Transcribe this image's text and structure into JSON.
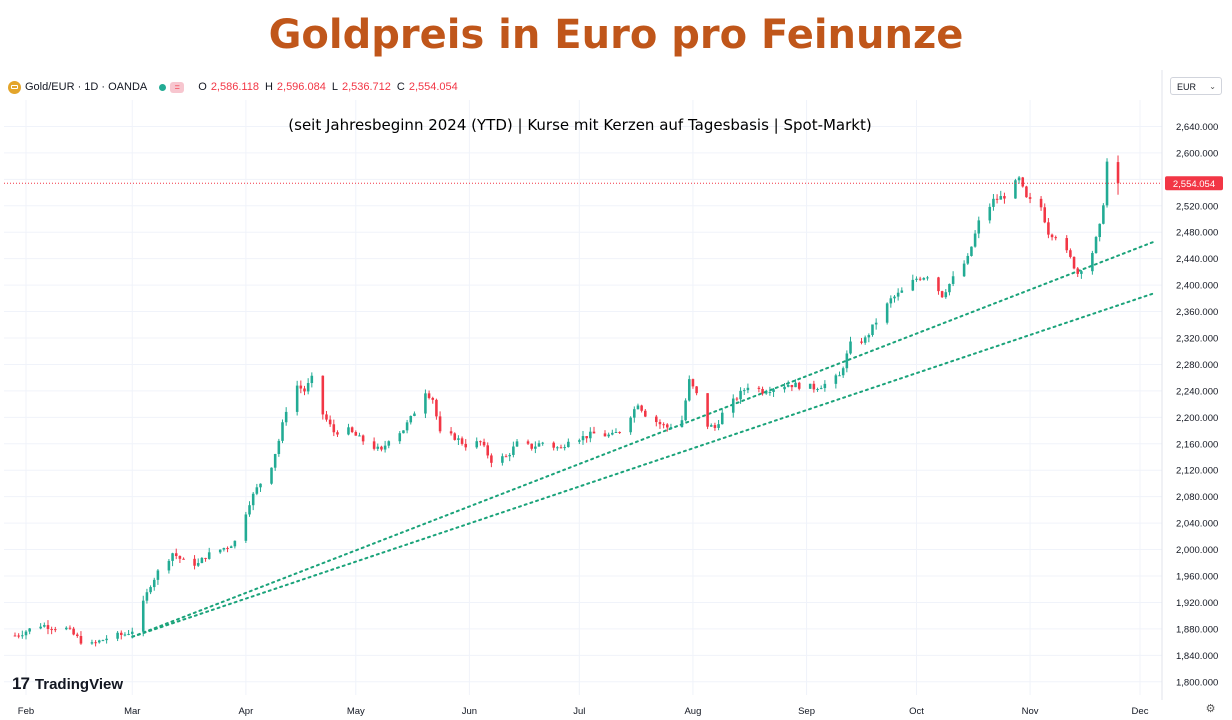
{
  "title": "Goldpreis in Euro pro Feinunze",
  "subtitle": "(seit Jahresbeginn 2024 (YTD) | Kurse mit Kerzen auf Tagesbasis | Spot-Markt)",
  "header": {
    "symbol": "Gold/EUR · 1D · OANDA",
    "badge": "=",
    "ohlc": [
      {
        "label": "O",
        "value": "2,586.118"
      },
      {
        "label": "H",
        "value": "2,596.084"
      },
      {
        "label": "L",
        "value": "2,536.712"
      },
      {
        "label": "C",
        "value": "2,554.054"
      }
    ]
  },
  "currency": "EUR",
  "logo_text": "TradingView",
  "colors": {
    "up": "#22ab94",
    "down": "#f23645",
    "title": "#c0561a",
    "trend": "#1aa37a"
  },
  "chart_data": {
    "type": "candlestick",
    "title": "Goldpreis in Euro pro Feinunze",
    "subtitle": "(seit Jahresbeginn 2024 (YTD) | Kurse mit Kerzen auf Tagesbasis | Spot-Markt)",
    "ylim": [
      1780,
      2680
    ],
    "y_ticks": [
      "1,800.000",
      "1,840.000",
      "1,880.000",
      "1,920.000",
      "1,960.000",
      "2,000.000",
      "2,040.000",
      "2,080.000",
      "2,120.000",
      "2,160.000",
      "2,200.000",
      "2,240.000",
      "2,280.000",
      "2,320.000",
      "2,360.000",
      "2,400.000",
      "2,440.000",
      "2,480.000",
      "2,520.000",
      "2,560.000",
      "2,600.000",
      "2,640.000"
    ],
    "x_ticks": [
      {
        "label": "Feb",
        "date": "2024-02-01"
      },
      {
        "label": "Mar",
        "date": "2024-03-01"
      },
      {
        "label": "Apr",
        "date": "2024-04-01"
      },
      {
        "label": "May",
        "date": "2024-05-01"
      },
      {
        "label": "Jun",
        "date": "2024-06-01"
      },
      {
        "label": "Jul",
        "date": "2024-07-01"
      },
      {
        "label": "Aug",
        "date": "2024-08-01"
      },
      {
        "label": "Sep",
        "date": "2024-09-01"
      },
      {
        "label": "Oct",
        "date": "2024-10-01"
      },
      {
        "label": "Nov",
        "date": "2024-11-01"
      },
      {
        "label": "Dec",
        "date": "2024-12-01"
      }
    ],
    "x_range": [
      "2024-01-26",
      "2024-12-07"
    ],
    "last_price": {
      "value": 2554.054,
      "label": "2,554.054"
    },
    "grid": true,
    "trendlines": [
      {
        "from": {
          "date": "2024-03-01",
          "price": 1868
        },
        "to": {
          "date": "2024-12-05",
          "price": 2466
        }
      },
      {
        "from": {
          "date": "2024-03-01",
          "price": 1868
        },
        "to": {
          "date": "2024-12-05",
          "price": 2388
        }
      }
    ],
    "closes": [
      {
        "date": "2024-01-29",
        "close": 1870
      },
      {
        "date": "2024-02-05",
        "close": 1886
      },
      {
        "date": "2024-02-12",
        "close": 1880
      },
      {
        "date": "2024-02-16",
        "close": 1862
      },
      {
        "date": "2024-02-19",
        "close": 1856
      },
      {
        "date": "2024-02-23",
        "close": 1866
      },
      {
        "date": "2024-02-28",
        "close": 1872
      },
      {
        "date": "2024-03-01",
        "close": 1878
      },
      {
        "date": "2024-03-04",
        "close": 1918
      },
      {
        "date": "2024-03-06",
        "close": 1948
      },
      {
        "date": "2024-03-08",
        "close": 1966
      },
      {
        "date": "2024-03-12",
        "close": 1995
      },
      {
        "date": "2024-03-15",
        "close": 1982
      },
      {
        "date": "2024-03-19",
        "close": 1978
      },
      {
        "date": "2024-03-21",
        "close": 1990
      },
      {
        "date": "2024-03-27",
        "close": 2005
      },
      {
        "date": "2024-03-29",
        "close": 2012
      },
      {
        "date": "2024-04-02",
        "close": 2072
      },
      {
        "date": "2024-04-04",
        "close": 2092
      },
      {
        "date": "2024-04-08",
        "close": 2128
      },
      {
        "date": "2024-04-10",
        "close": 2165
      },
      {
        "date": "2024-04-12",
        "close": 2212
      },
      {
        "date": "2024-04-15",
        "close": 2248
      },
      {
        "date": "2024-04-17",
        "close": 2240
      },
      {
        "date": "2024-04-19",
        "close": 2258
      },
      {
        "date": "2024-04-22",
        "close": 2205
      },
      {
        "date": "2024-04-25",
        "close": 2178
      },
      {
        "date": "2024-04-29",
        "close": 2180
      },
      {
        "date": "2024-05-02",
        "close": 2168
      },
      {
        "date": "2024-05-06",
        "close": 2155
      },
      {
        "date": "2024-05-08",
        "close": 2148
      },
      {
        "date": "2024-05-10",
        "close": 2168
      },
      {
        "date": "2024-05-14",
        "close": 2182
      },
      {
        "date": "2024-05-16",
        "close": 2198
      },
      {
        "date": "2024-05-20",
        "close": 2240
      },
      {
        "date": "2024-05-22",
        "close": 2228
      },
      {
        "date": "2024-05-24",
        "close": 2175
      },
      {
        "date": "2024-05-28",
        "close": 2170
      },
      {
        "date": "2024-05-31",
        "close": 2158
      },
      {
        "date": "2024-06-04",
        "close": 2162
      },
      {
        "date": "2024-06-07",
        "close": 2135
      },
      {
        "date": "2024-06-11",
        "close": 2140
      },
      {
        "date": "2024-06-14",
        "close": 2160
      },
      {
        "date": "2024-06-18",
        "close": 2155
      },
      {
        "date": "2024-06-21",
        "close": 2162
      },
      {
        "date": "2024-06-26",
        "close": 2152
      },
      {
        "date": "2024-06-28",
        "close": 2168
      },
      {
        "date": "2024-07-02",
        "close": 2170
      },
      {
        "date": "2024-07-05",
        "close": 2175
      },
      {
        "date": "2024-07-10",
        "close": 2172
      },
      {
        "date": "2024-07-12",
        "close": 2180
      },
      {
        "date": "2024-07-16",
        "close": 2212
      },
      {
        "date": "2024-07-17",
        "close": 2222
      },
      {
        "date": "2024-07-19",
        "close": 2205
      },
      {
        "date": "2024-07-23",
        "close": 2190
      },
      {
        "date": "2024-07-25",
        "close": 2185
      },
      {
        "date": "2024-07-29",
        "close": 2196
      },
      {
        "date": "2024-07-31",
        "close": 2255
      },
      {
        "date": "2024-08-02",
        "close": 2234
      },
      {
        "date": "2024-08-05",
        "close": 2188
      },
      {
        "date": "2024-08-07",
        "close": 2184
      },
      {
        "date": "2024-08-09",
        "close": 2205
      },
      {
        "date": "2024-08-13",
        "close": 2230
      },
      {
        "date": "2024-08-16",
        "close": 2248
      },
      {
        "date": "2024-08-20",
        "close": 2240
      },
      {
        "date": "2024-08-23",
        "close": 2245
      },
      {
        "date": "2024-08-27",
        "close": 2250
      },
      {
        "date": "2024-08-30",
        "close": 2248
      },
      {
        "date": "2024-09-03",
        "close": 2245
      },
      {
        "date": "2024-09-06",
        "close": 2250
      },
      {
        "date": "2024-09-10",
        "close": 2262
      },
      {
        "date": "2024-09-13",
        "close": 2310
      },
      {
        "date": "2024-09-17",
        "close": 2318
      },
      {
        "date": "2024-09-20",
        "close": 2345
      },
      {
        "date": "2024-09-24",
        "close": 2378
      },
      {
        "date": "2024-09-27",
        "close": 2390
      },
      {
        "date": "2024-10-01",
        "close": 2410
      },
      {
        "date": "2024-10-04",
        "close": 2415
      },
      {
        "date": "2024-10-08",
        "close": 2385
      },
      {
        "date": "2024-10-11",
        "close": 2410
      },
      {
        "date": "2024-10-15",
        "close": 2440
      },
      {
        "date": "2024-10-18",
        "close": 2495
      },
      {
        "date": "2024-10-22",
        "close": 2528
      },
      {
        "date": "2024-10-25",
        "close": 2535
      },
      {
        "date": "2024-10-29",
        "close": 2560
      },
      {
        "date": "2024-10-31",
        "close": 2530
      },
      {
        "date": "2024-11-04",
        "close": 2518
      },
      {
        "date": "2024-11-06",
        "close": 2480
      },
      {
        "date": "2024-11-08",
        "close": 2475
      },
      {
        "date": "2024-11-12",
        "close": 2440
      },
      {
        "date": "2024-11-14",
        "close": 2418
      },
      {
        "date": "2024-11-18",
        "close": 2450
      },
      {
        "date": "2024-11-20",
        "close": 2488
      },
      {
        "date": "2024-11-21",
        "close": 2525
      },
      {
        "date": "2024-11-22",
        "close": 2586
      },
      {
        "date": "2024-11-25",
        "close": 2554
      }
    ]
  }
}
